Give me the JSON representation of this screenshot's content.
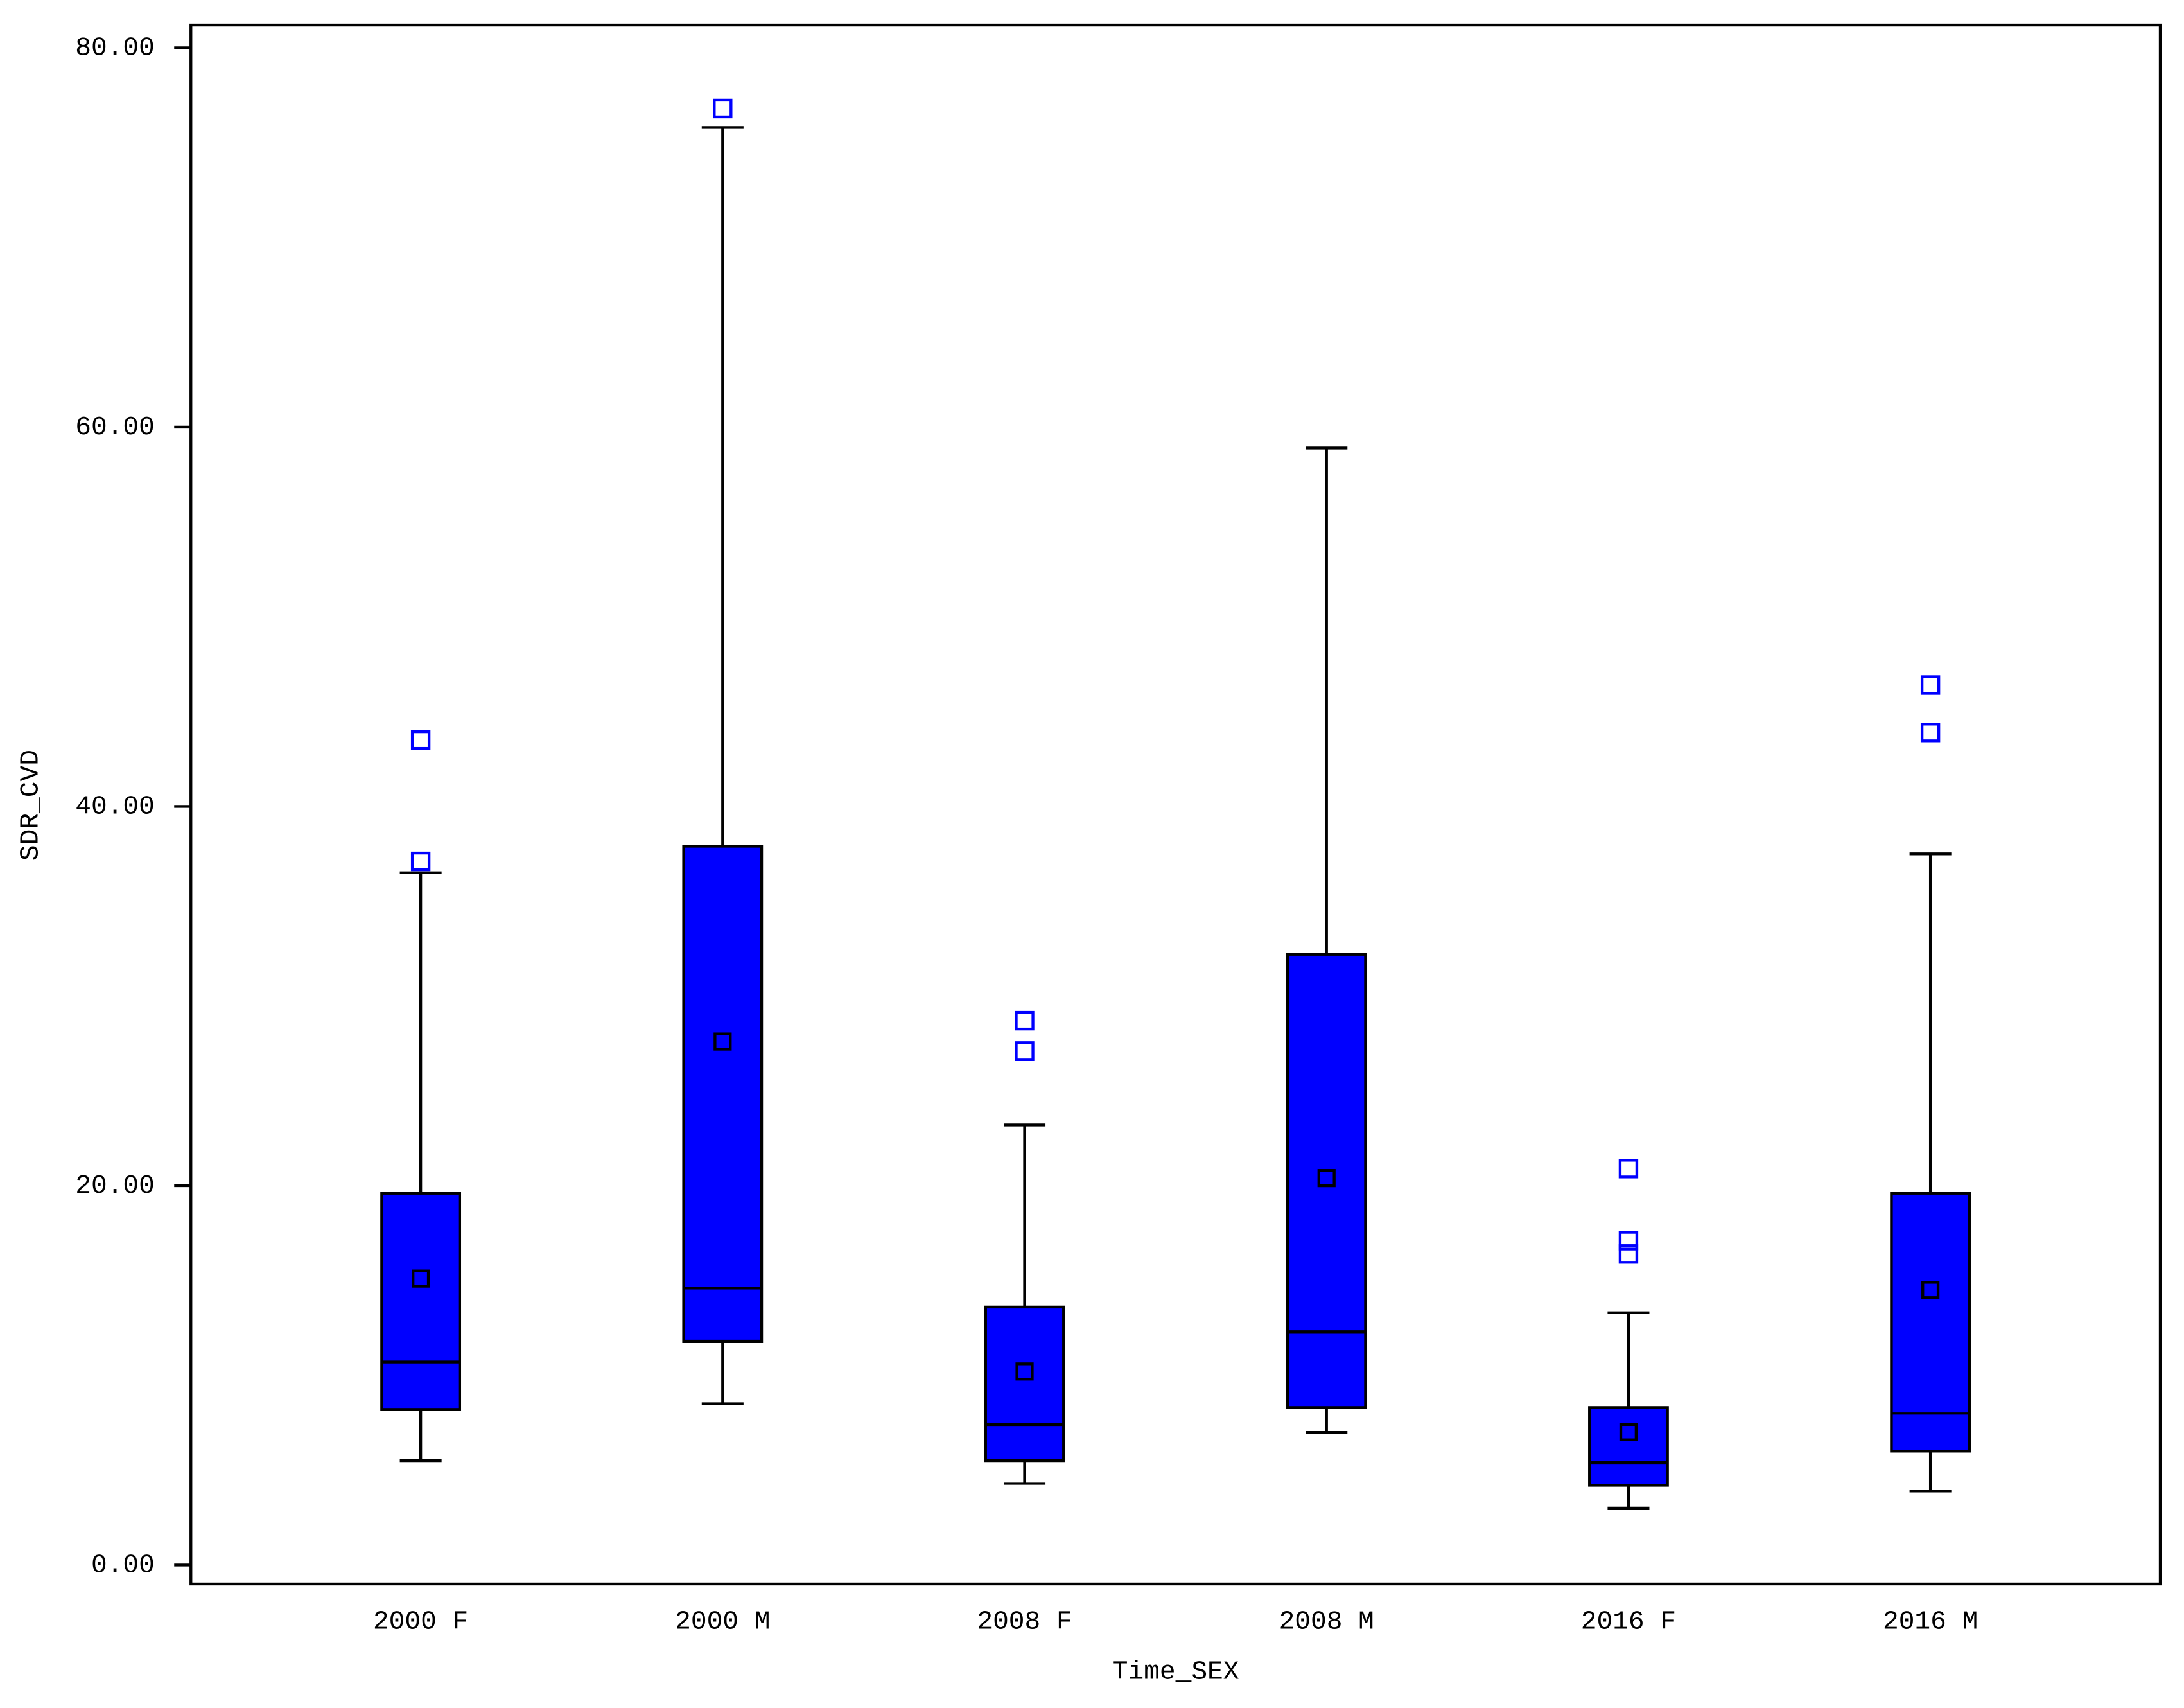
{
  "chart_data": {
    "type": "box",
    "x_label": "Time_SEX",
    "y_label": "SDR_CVD",
    "categories": [
      "2000 F",
      "2000 M",
      "2008 F",
      "2008 M",
      "2016 F",
      "2016 M"
    ],
    "color": "#0000ff",
    "outlier_color": "#0000ff",
    "boxes": [
      {
        "min": 5.5,
        "q1": 8.2,
        "median": 10.7,
        "q3": 19.6,
        "max": 36.5,
        "mean": 15.1,
        "outliers": [
          37.1,
          43.5
        ]
      },
      {
        "min": 8.5,
        "q1": 11.8,
        "median": 14.6,
        "q3": 37.9,
        "max": 75.8,
        "mean": 27.6,
        "outliers": [
          76.8
        ]
      },
      {
        "min": 4.3,
        "q1": 5.5,
        "median": 7.4,
        "q3": 13.6,
        "max": 23.2,
        "mean": 10.2,
        "outliers": [
          27.1,
          28.7
        ]
      },
      {
        "min": 7.0,
        "q1": 8.3,
        "median": 12.3,
        "q3": 32.2,
        "max": 58.9,
        "mean": 20.4,
        "outliers": []
      },
      {
        "min": 3.0,
        "q1": 4.2,
        "median": 5.4,
        "q3": 8.3,
        "max": 13.3,
        "mean": 7.0,
        "outliers": [
          16.4,
          17.1,
          20.9
        ]
      },
      {
        "min": 3.9,
        "q1": 6.0,
        "median": 8.0,
        "q3": 19.6,
        "max": 37.5,
        "mean": 14.5,
        "outliers": [
          43.9,
          46.4
        ]
      }
    ],
    "ylim": [
      -1,
      81.2
    ],
    "yticks": [
      {
        "value": 0,
        "label": "0.00"
      },
      {
        "value": 20,
        "label": "20.00"
      },
      {
        "value": 40,
        "label": "40.00"
      },
      {
        "value": 60,
        "label": "60.00"
      },
      {
        "value": 80,
        "label": "80.00"
      }
    ]
  }
}
